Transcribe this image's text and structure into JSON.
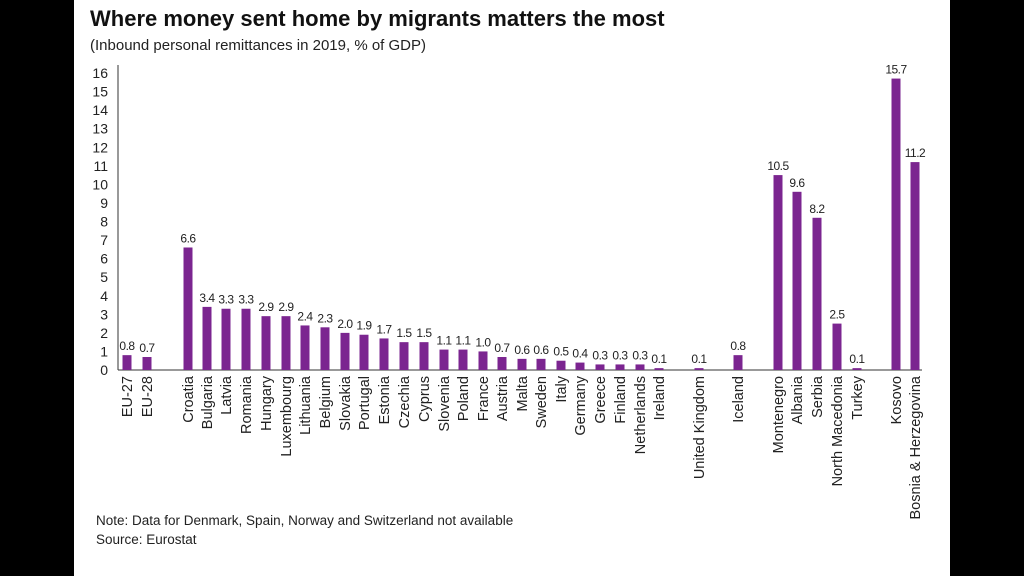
{
  "title": "Where money sent home by migrants matters the most",
  "subtitle": "(Inbound personal remittances in 2019, % of GDP)",
  "note": "Note: Data for Denmark, Spain, Norway and Switzerland not available",
  "source": "Source: Eurostat",
  "colors": {
    "bar": "#7b2590",
    "axis": "#333333",
    "background": "#ffffff",
    "frame": "#000000"
  },
  "chart_data": {
    "type": "bar",
    "title": "Where money sent home by migrants matters the most",
    "subtitle": "(Inbound personal remittances in 2019, % of GDP)",
    "xlabel": "",
    "ylabel": "",
    "ylim": [
      0,
      16
    ],
    "yticks": [
      0,
      1,
      2,
      3,
      4,
      5,
      6,
      7,
      8,
      9,
      10,
      11,
      12,
      13,
      14,
      15,
      16
    ],
    "grid": false,
    "categories": [
      "EU-27",
      "EU-28",
      "Croatia",
      "Bulgaria",
      "Latvia",
      "Romania",
      "Hungary",
      "Luxembourg",
      "Lithuania",
      "Belgium",
      "Slovakia",
      "Portugal",
      "Estonia",
      "Czechia",
      "Cyprus",
      "Slovenia",
      "Poland",
      "France",
      "Austria",
      "Malta",
      "Sweden",
      "Italy",
      "Germany",
      "Greece",
      "Finland",
      "Netherlands",
      "Ireland",
      "United Kingdom",
      "Iceland",
      "Montenegro",
      "Albania",
      "Serbia",
      "North Macedonia",
      "Turkey",
      "Kosovo",
      "Bosnia & Herzegovina"
    ],
    "values": [
      0.8,
      0.7,
      6.6,
      3.4,
      3.3,
      3.3,
      2.9,
      2.9,
      2.4,
      2.3,
      2.0,
      1.9,
      1.7,
      1.5,
      1.5,
      1.1,
      1.1,
      1.0,
      0.7,
      0.6,
      0.6,
      0.5,
      0.4,
      0.3,
      0.3,
      0.3,
      0.1,
      0.1,
      0.8,
      10.5,
      9.6,
      8.2,
      2.5,
      0.1,
      15.7,
      11.2
    ],
    "value_labels": [
      "0.8",
      "0.7",
      "6.6",
      "3.4",
      "3.3",
      "3.3",
      "2.9",
      "2.9",
      "2.4",
      "2.3",
      "2.0",
      "1.9",
      "1.7",
      "1.5",
      "1.5",
      "1.1",
      "1.1",
      "1.0",
      "0.7",
      "0.6",
      "0.6",
      "0.5",
      "0.4",
      "0.3",
      "0.3",
      "0.3",
      "0.1",
      "0.1",
      "0.8",
      "10.5",
      "9.6",
      "8.2",
      "2.5",
      "0.1",
      "15.7",
      "11.2"
    ]
  }
}
